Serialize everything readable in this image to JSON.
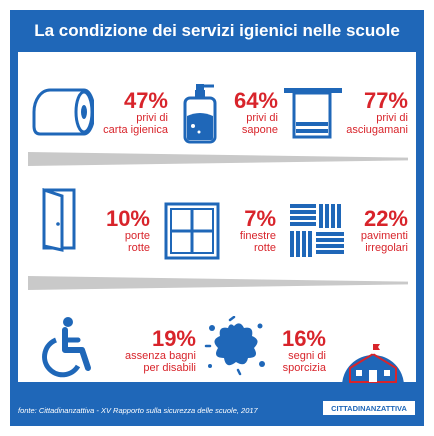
{
  "title": "La condizione dei servizi igienici nelle scuole",
  "stats": [
    {
      "pct": "47%",
      "line1": "privi di",
      "line2": "carta igienica",
      "icon": "toilet-paper-icon"
    },
    {
      "pct": "64%",
      "line1": "privi di",
      "line2": "sapone",
      "icon": "soap-dispenser-icon"
    },
    {
      "pct": "77%",
      "line1": "privi di",
      "line2": "asciugamani",
      "icon": "towel-icon"
    },
    {
      "pct": "10%",
      "line1": "porte",
      "line2": "rotte",
      "icon": "door-icon"
    },
    {
      "pct": "7%",
      "line1": "finestre",
      "line2": "rotte",
      "icon": "window-icon"
    },
    {
      "pct": "22%",
      "line1": "pavimenti",
      "line2": "irregolari",
      "icon": "floor-tiles-icon"
    },
    {
      "pct": "19%",
      "line1": "assenza bagni",
      "line2": "per disabili",
      "icon": "wheelchair-icon"
    },
    {
      "pct": "16%",
      "line1": "segni di",
      "line2": "sporcizia",
      "icon": "dirt-splash-icon"
    }
  ],
  "footer": "fonte: Cittadinanzattiva - XV Rapporto sulla sicurezza delle scuole, 2017",
  "logo": "CITTADINANZATTIVA",
  "colors": {
    "brand_blue": "#1f67b8",
    "accent_red": "#d8242b",
    "shadow_gray": "#c9c9c9"
  }
}
